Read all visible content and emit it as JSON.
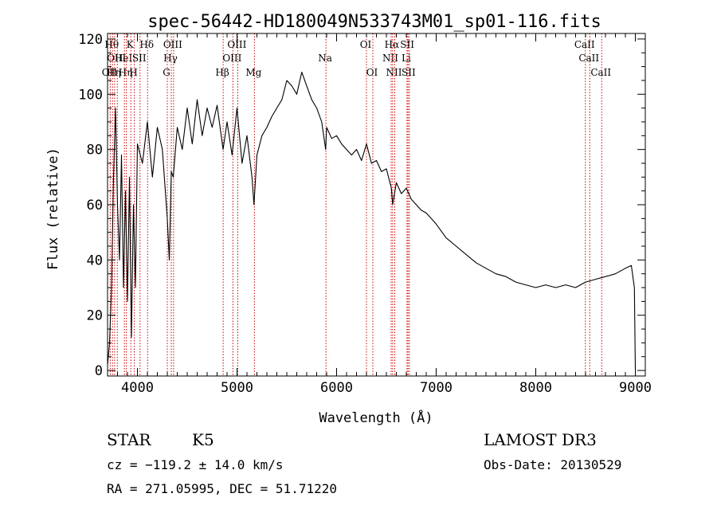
{
  "chart_data": {
    "type": "line",
    "title": "spec-56442-HD180049N533743M01_sp01-116.fits",
    "xlabel": "Wavelength (Å)",
    "ylabel": "Flux (relative)",
    "xlim": [
      3700,
      9100
    ],
    "ylim": [
      -2,
      122
    ],
    "xticks": [
      4000,
      5000,
      6000,
      7000,
      8000,
      9000
    ],
    "yticks": [
      0,
      20,
      40,
      60,
      80,
      100,
      120
    ],
    "grid": false,
    "series": [
      {
        "name": "flux",
        "color": "#000000",
        "x": [
          3700,
          3720,
          3740,
          3760,
          3780,
          3800,
          3820,
          3840,
          3860,
          3880,
          3900,
          3920,
          3940,
          3960,
          3980,
          4000,
          4050,
          4100,
          4150,
          4200,
          4250,
          4300,
          4320,
          4340,
          4360,
          4400,
          4450,
          4500,
          4550,
          4600,
          4650,
          4700,
          4750,
          4800,
          4860,
          4900,
          4950,
          5000,
          5050,
          5100,
          5150,
          5170,
          5200,
          5250,
          5300,
          5350,
          5400,
          5450,
          5500,
          5550,
          5600,
          5650,
          5700,
          5750,
          5800,
          5850,
          5890,
          5900,
          5950,
          6000,
          6050,
          6100,
          6150,
          6200,
          6250,
          6300,
          6350,
          6400,
          6450,
          6500,
          6550,
          6563,
          6600,
          6650,
          6700,
          6750,
          6800,
          6850,
          6900,
          6950,
          7000,
          7100,
          7200,
          7300,
          7400,
          7500,
          7600,
          7700,
          7800,
          7900,
          8000,
          8100,
          8200,
          8300,
          8400,
          8500,
          8600,
          8700,
          8800,
          8900,
          8960,
          8990,
          9000
        ],
        "values": [
          2,
          10,
          30,
          70,
          95,
          60,
          40,
          78,
          30,
          65,
          25,
          70,
          12,
          60,
          30,
          82,
          75,
          90,
          70,
          88,
          80,
          55,
          40,
          72,
          70,
          88,
          80,
          95,
          82,
          98,
          85,
          95,
          88,
          96,
          80,
          90,
          78,
          95,
          75,
          85,
          70,
          60,
          78,
          85,
          88,
          92,
          95,
          98,
          105,
          103,
          100,
          108,
          103,
          98,
          95,
          90,
          80,
          88,
          84,
          85,
          82,
          80,
          78,
          80,
          76,
          82,
          75,
          76,
          72,
          73,
          66,
          60,
          68,
          64,
          66,
          62,
          60,
          58,
          57,
          55,
          53,
          48,
          45,
          42,
          39,
          37,
          35,
          34,
          32,
          31,
          30,
          31,
          30,
          31,
          30,
          32,
          33,
          34,
          35,
          37,
          38,
          30,
          0
        ]
      }
    ],
    "line_markers": [
      {
        "x": 3727,
        "label": "OII",
        "row": 3
      },
      {
        "x": 3750,
        "label": "Hθ",
        "row": 1
      },
      {
        "x": 3771,
        "label": "Hη",
        "row": 3
      },
      {
        "x": 3798,
        "label": "OIII",
        "row": 2
      },
      {
        "x": 3869,
        "label": "HeI",
        "row": 2
      },
      {
        "x": 3889,
        "label": "Hη",
        "row": 3
      },
      {
        "x": 3934,
        "label": "K",
        "row": 1
      },
      {
        "x": 3969,
        "label": "H",
        "row": 3
      },
      {
        "x": 4026,
        "label": "SII",
        "row": 2
      },
      {
        "x": 4102,
        "label": "Hδ",
        "row": 1
      },
      {
        "x": 4300,
        "label": "G",
        "row": 3
      },
      {
        "x": 4340,
        "label": "Hγ",
        "row": 2
      },
      {
        "x": 4363,
        "label": "OIII",
        "row": 1
      },
      {
        "x": 4861,
        "label": "Hβ",
        "row": 3
      },
      {
        "x": 4959,
        "label": "OIII",
        "row": 2
      },
      {
        "x": 5007,
        "label": "OIII",
        "row": 1
      },
      {
        "x": 5175,
        "label": "Mg",
        "row": 3
      },
      {
        "x": 5893,
        "label": "Na",
        "row": 2
      },
      {
        "x": 6300,
        "label": "OI",
        "row": 1
      },
      {
        "x": 6364,
        "label": "OI",
        "row": 3
      },
      {
        "x": 6548,
        "label": "NII",
        "row": 2
      },
      {
        "x": 6563,
        "label": "Hα",
        "row": 1
      },
      {
        "x": 6584,
        "label": "NII",
        "row": 3
      },
      {
        "x": 6707,
        "label": "Li",
        "row": 2
      },
      {
        "x": 6717,
        "label": "SII",
        "row": 1
      },
      {
        "x": 6731,
        "label": "SII",
        "row": 3
      },
      {
        "x": 8498,
        "label": "CaII",
        "row": 1
      },
      {
        "x": 8542,
        "label": "CaII",
        "row": 2
      },
      {
        "x": 8662,
        "label": "CaII",
        "row": 3
      }
    ],
    "marker_color": "#cc0000"
  },
  "info": {
    "object_type": "STAR",
    "subclass": "K5",
    "survey": "LAMOST DR3",
    "redshift": "cz = −119.2 ± 14.0 km/s",
    "obs_date": "Obs-Date: 20130529",
    "coords": "RA = 271.05995, DEC =  51.71220"
  }
}
